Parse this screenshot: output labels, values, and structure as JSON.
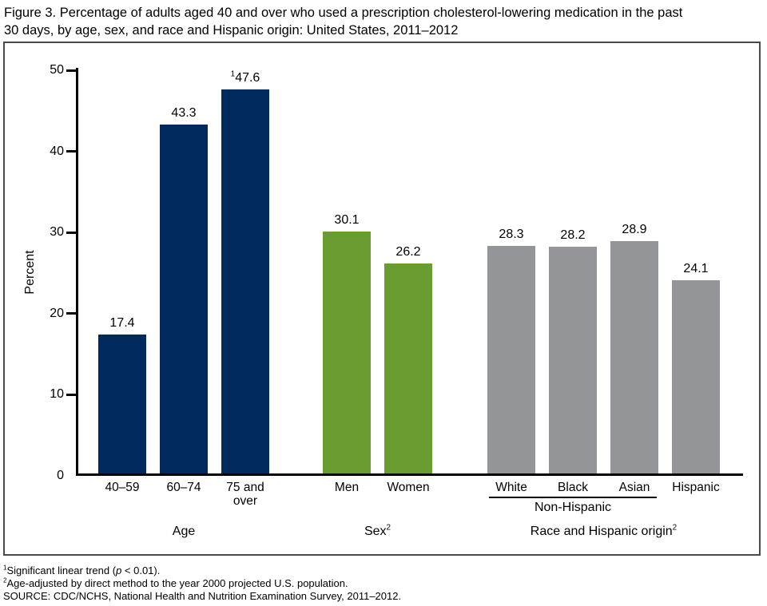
{
  "title": {
    "line1": "Figure 3. Percentage of adults aged 40 and over who used a prescription cholesterol-lowering medication in the past",
    "line2": "30 days, by age, sex, and race and Hispanic origin: United States, 2011–2012"
  },
  "chart_data": {
    "type": "bar",
    "title": "Percentage of adults aged 40 and over who used a prescription cholesterol-lowering medication in the past 30 days, by age, sex, and race and Hispanic origin: United States, 2011–2012",
    "ylabel": "Percent",
    "ylim": [
      0,
      50
    ],
    "yticks": [
      0,
      10,
      20,
      30,
      40,
      50
    ],
    "grid": false,
    "legend": "none",
    "groups": [
      {
        "label": "Age",
        "label_sup": "",
        "color": "#002a5e",
        "bars": [
          {
            "category": "40–59",
            "value": 17.4,
            "value_sup": ""
          },
          {
            "category": "60–74",
            "value": 43.3,
            "value_sup": ""
          },
          {
            "category": "75 and\nover",
            "value": 47.6,
            "value_sup": "1"
          }
        ]
      },
      {
        "label": "Sex",
        "label_sup": "2",
        "color": "#6a9d31",
        "bars": [
          {
            "category": "Men",
            "value": 30.1,
            "value_sup": ""
          },
          {
            "category": "Women",
            "value": 26.2,
            "value_sup": ""
          }
        ]
      },
      {
        "label": "Race and Hispanic origin",
        "label_sup": "2",
        "color": "#939598",
        "bars": [
          {
            "category": "White",
            "value": 28.3,
            "value_sup": ""
          },
          {
            "category": "Black",
            "value": 28.2,
            "value_sup": ""
          },
          {
            "category": "Asian",
            "value": 28.9,
            "value_sup": ""
          },
          {
            "category": "Hispanic",
            "value": 24.1,
            "value_sup": ""
          }
        ],
        "bracket": {
          "label": "Non-Hispanic",
          "from_bar": 0,
          "to_bar": 2
        }
      }
    ]
  },
  "colors": {
    "navy": "#002a5e",
    "green": "#6a9d31",
    "gray": "#939598",
    "axis": "#000000",
    "frame_border": "#4a4a4a"
  },
  "footnotes": {
    "fn1": {
      "sup": "1",
      "pre": "Significant linear trend (",
      "italic": "p",
      "post": " < 0.01)."
    },
    "fn2": {
      "sup": "2",
      "text": "Age-adjusted by direct method to the year 2000 projected U.S. population."
    },
    "source": "SOURCE: CDC/NCHS, National Health and Nutrition Examination Survey, 2011–2012."
  }
}
